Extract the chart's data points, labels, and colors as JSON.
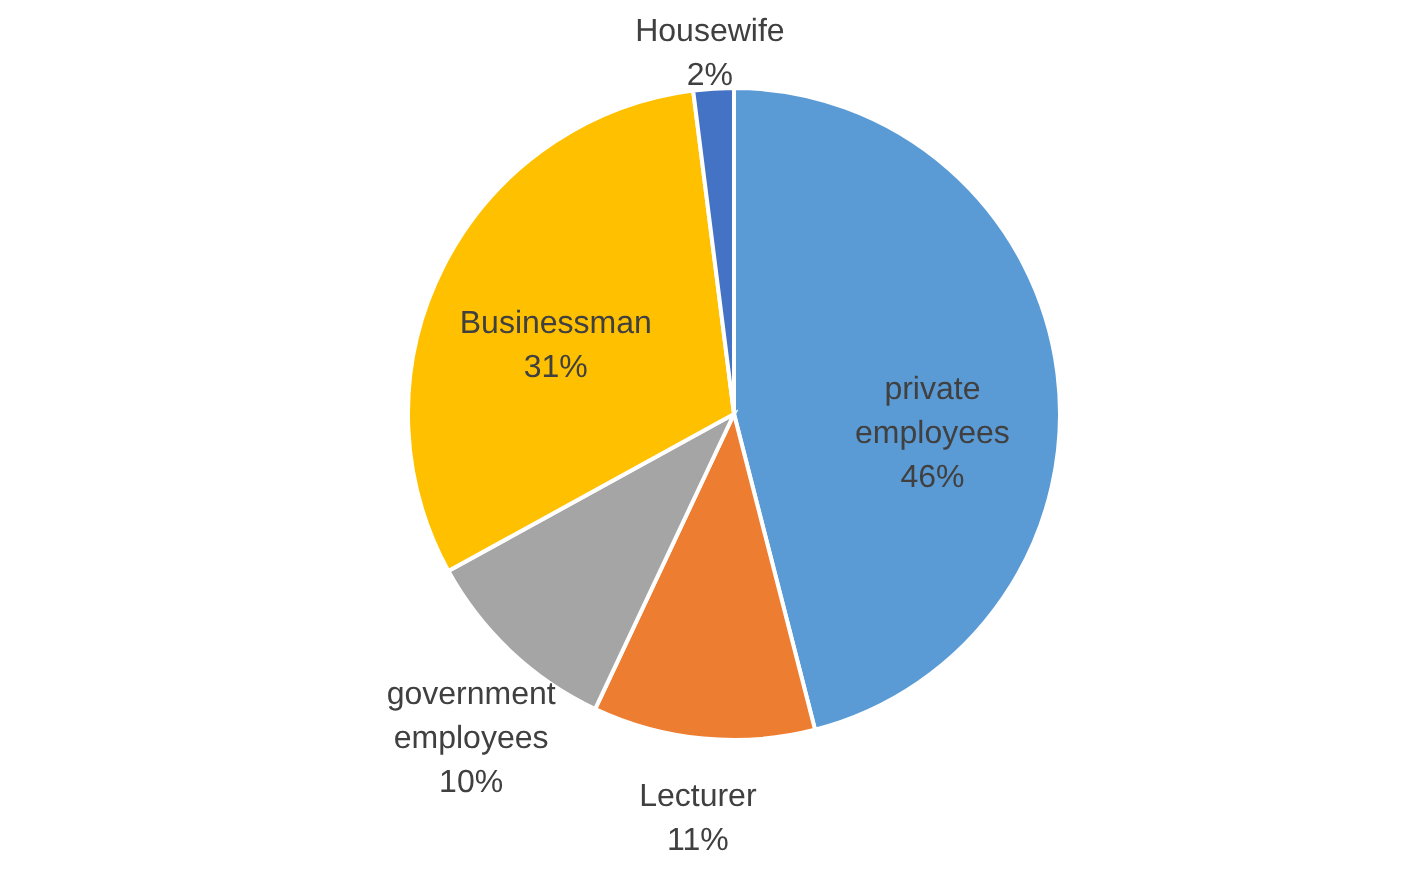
{
  "chart_data": {
    "type": "pie",
    "categories": [
      "private employees",
      "Lecturer",
      "government employees",
      "Businessman",
      "Housewife"
    ],
    "values": [
      46,
      11,
      10,
      31,
      2
    ],
    "colors": [
      "#5b9bd5",
      "#ed7d31",
      "#a5a5a5",
      "#ffc000",
      "#4472c4"
    ],
    "value_labels": [
      "46%",
      "11%",
      "10%",
      "31%",
      "2%"
    ]
  }
}
